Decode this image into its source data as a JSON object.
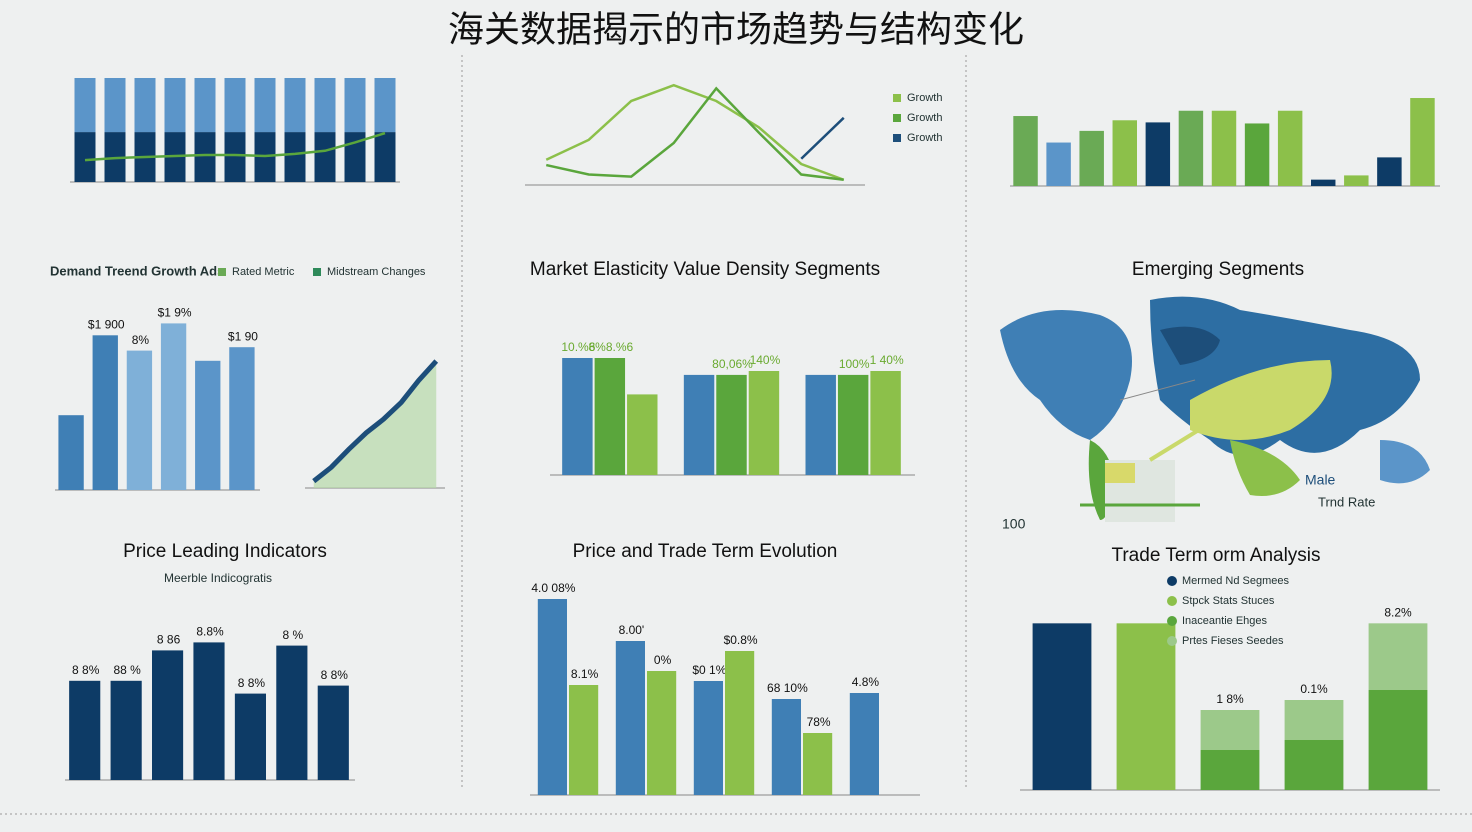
{
  "title": "海关数据揭示的市场趋势与结构变化",
  "map": {
    "title": "Emerging Segments",
    "labels": [
      "Male",
      "Trnd Rate",
      "100"
    ]
  },
  "chart_data": [
    {
      "type": "stacked_bar",
      "categories": [
        null,
        null,
        null,
        null,
        null,
        null,
        null,
        null,
        null,
        null,
        null
      ],
      "ylim": [
        0,
        100
      ],
      "series": [
        {
          "color": "#0d3b66",
          "values": [
            48,
            48,
            48,
            48,
            48,
            48,
            48,
            48,
            48,
            48,
            48
          ]
        },
        {
          "color": "#5b95c9",
          "values": [
            52,
            52,
            52,
            52,
            52,
            52,
            52,
            52,
            52,
            52,
            52
          ]
        },
        {
          "type": "line",
          "color": "#5aa63c",
          "values": [
            21,
            23,
            24,
            25,
            26,
            26,
            25,
            27,
            30,
            38,
            47
          ]
        }
      ]
    },
    {
      "type": "line",
      "categories": [
        null,
        null,
        null,
        null,
        null,
        null,
        null,
        null
      ],
      "ylim": [
        0,
        100
      ],
      "series": [
        {
          "name": "Growth",
          "color": "#8cc04a",
          "values": [
            24,
            43,
            80,
            95,
            80,
            55,
            20,
            5
          ]
        },
        {
          "name": "Growth",
          "color": "#5aa63c",
          "values": [
            19,
            10,
            8,
            40,
            92,
            50,
            10,
            5
          ]
        },
        {
          "name": "Growth",
          "color": "#1d4e7a",
          "values": [
            null,
            null,
            null,
            null,
            null,
            null,
            25,
            64
          ]
        }
      ]
    },
    {
      "type": "bar",
      "categories": [
        null,
        null,
        null,
        null,
        null,
        null,
        null,
        null,
        null,
        null,
        null,
        null,
        null
      ],
      "ylim": [
        0,
        100
      ],
      "series": [
        {
          "colors": [
            "#6aaa55",
            "#5b95c9",
            "#6aaa55",
            "#8cc04a",
            "#0d3b66",
            "#6aaa55",
            "#8cc04a",
            "#5aa63c",
            "#8cc04a",
            "#0d3b66",
            "#8cc04a",
            "#0d3b66",
            "#8cc04a"
          ],
          "values": [
            66,
            41,
            52,
            62,
            60,
            71,
            71,
            59,
            71,
            6,
            10,
            27,
            83
          ]
        }
      ]
    },
    {
      "type": "bar",
      "title": "Demand Treend Growth Ads",
      "categories": [
        null,
        null,
        null,
        null,
        null,
        null
      ],
      "ylim": [
        0,
        100
      ],
      "legend_names": [
        "Rated Metric",
        "Midstream Changes"
      ],
      "legend_colors": [
        "#6aaa55",
        "#2e8a5a"
      ],
      "series": [
        {
          "colors": [
            "#3f7fb5",
            "#3f7fb5",
            "#7fb0d8",
            "#7fb0d8",
            "#5b95c9",
            "#5b95c9"
          ],
          "values": [
            44,
            91,
            82,
            98,
            76,
            84
          ],
          "value_labels": [
            null,
            "$1 900",
            "8%",
            "$1 9%",
            null,
            "$1 90"
          ]
        }
      ]
    },
    {
      "type": "line",
      "area": true,
      "categories": [
        null,
        null,
        null,
        null,
        null,
        null,
        null,
        null
      ],
      "ylim": [
        0,
        100
      ],
      "series": [
        {
          "color": "#1d4e7a",
          "values": [
            5,
            15,
            28,
            40,
            50,
            62,
            78,
            92
          ]
        }
      ]
    },
    {
      "type": "bar",
      "title": "Market Elasticity Value Density Segments",
      "categories": [
        null,
        null,
        null
      ],
      "ylim": [
        0,
        100
      ],
      "series": [
        {
          "color": "#3f7fb5",
          "values": [
            90,
            77,
            77
          ],
          "value_labels": [
            "10.%6",
            null,
            null
          ]
        },
        {
          "color": "#5aa63c",
          "values": [
            90,
            77,
            77
          ],
          "value_labels": [
            "8%8.%6",
            "80,06%",
            "100%"
          ]
        },
        {
          "color": "#8cc04a",
          "values": [
            62,
            80,
            80
          ],
          "value_labels": [
            null,
            "140%",
            "1 40%"
          ]
        }
      ]
    },
    {
      "type": "bar",
      "title": "Price Leading Indicators",
      "subtitle": "Meerble Indicogratis",
      "categories": [
        null,
        null,
        null,
        null,
        null,
        null,
        null
      ],
      "ylim": [
        0,
        100
      ],
      "series": [
        {
          "color": "#0d3b66",
          "values": [
            62,
            62,
            81,
            86,
            54,
            84,
            59
          ],
          "value_labels": [
            "8 8%",
            "88 %",
            "8 86",
            "8.8%",
            "8 8%",
            "8 %",
            "8 8%"
          ]
        }
      ]
    },
    {
      "type": "bar",
      "title": "Price and Trade Term Evolution",
      "categories": [
        null,
        null,
        null,
        null,
        null
      ],
      "ylim": [
        0,
        100
      ],
      "series": [
        {
          "color": "#3f7fb5",
          "values": [
            98,
            77,
            57,
            48,
            51
          ],
          "value_labels": [
            "4.0 08%",
            "8.00'",
            "$0 1%",
            "68 10%",
            "4.8%"
          ]
        },
        {
          "color": "#8cc04a",
          "values": [
            55,
            62,
            72,
            31,
            null
          ],
          "value_labels": [
            "8.1%",
            "0%",
            "$0.8%",
            "78%",
            null
          ]
        }
      ]
    },
    {
      "type": "stacked_bar",
      "title": "Trade Term orm Analysis",
      "categories": [
        null,
        null,
        null,
        null,
        null
      ],
      "ylim": [
        0,
        105
      ],
      "series": [
        {
          "name": "Mermed Nd Segmees",
          "color": "#0d3b66",
          "values": [
            100,
            0,
            0,
            0,
            0
          ]
        },
        {
          "name": "Stpck Stats Stuces",
          "color": "#8cc04a",
          "values": [
            0,
            100,
            0,
            0,
            0
          ]
        },
        {
          "name": "Inaceantie Ehges",
          "color": "#5aa63c",
          "values": [
            0,
            0,
            24,
            30,
            60
          ]
        },
        {
          "name": "Prtes Fieses Seedes",
          "color": "#9cc98a",
          "values": [
            0,
            0,
            24,
            24,
            40
          ],
          "value_labels": [
            null,
            null,
            "1 8%",
            "0.1%",
            "8.2%"
          ]
        }
      ]
    }
  ]
}
